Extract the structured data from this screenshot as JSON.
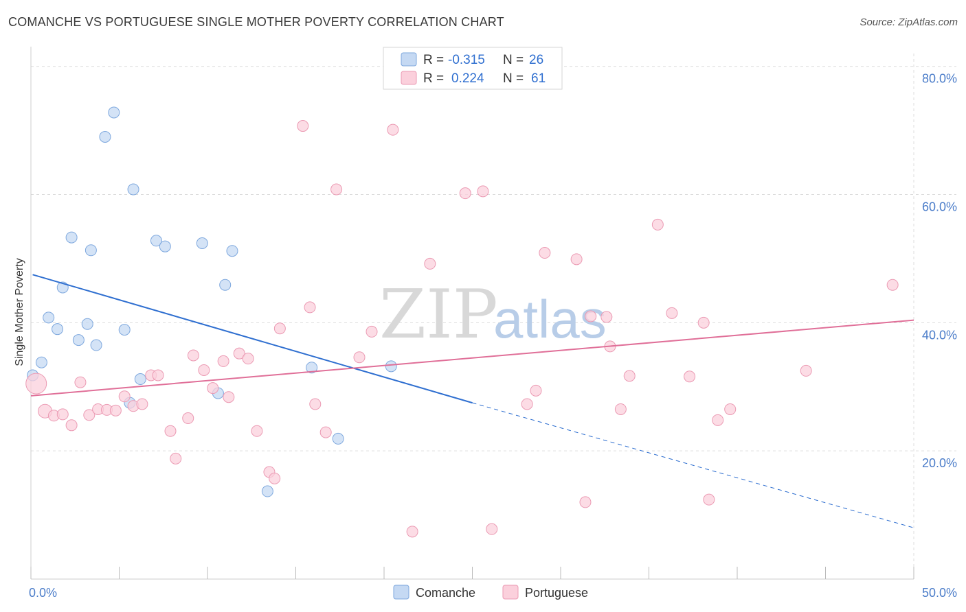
{
  "header": {
    "title": "COMANCHE VS PORTUGUESE SINGLE MOTHER POVERTY CORRELATION CHART",
    "source": "Source: ZipAtlas.com"
  },
  "watermark": {
    "zip": "ZIP",
    "atlas": "atlas"
  },
  "legend_top": {
    "rows": [
      {
        "r_label": "R = ",
        "r_value": "-0.315",
        "n_label": "N = ",
        "n_value": "26"
      },
      {
        "r_label": "R = ",
        "r_value": "0.224",
        "n_label": "N = ",
        "n_value": "61"
      }
    ]
  },
  "legend_bottom": {
    "items": [
      "Comanche",
      "Portuguese"
    ]
  },
  "colors": {
    "comanche_fill": "#c5d9f3",
    "comanche_stroke": "#7ea8de",
    "comanche_line": "#2f6fd0",
    "portuguese_fill": "#fbd0dc",
    "portuguese_stroke": "#eb9ab3",
    "portuguese_line": "#e06f98",
    "grid": "#dcdcdc",
    "tick_label": "#4a7cc9"
  },
  "chart_data": {
    "type": "scatter",
    "title": "COMANCHE VS PORTUGUESE SINGLE MOTHER POVERTY CORRELATION CHART",
    "xlabel": "",
    "ylabel": "Single Mother Poverty",
    "xlim": [
      0,
      50
    ],
    "ylim": [
      0,
      82
    ],
    "x_tick_labels": [
      "0.0%",
      "50.0%"
    ],
    "y_ticks": [
      20,
      40,
      60,
      80
    ],
    "y_tick_labels": [
      "20.0%",
      "40.0%",
      "60.0%",
      "80.0%"
    ],
    "grid": true,
    "legend_position": "top-center",
    "series": [
      {
        "name": "Comanche",
        "r": -0.315,
        "n": 26,
        "points": [
          [
            0.1,
            31.8
          ],
          [
            0.6,
            33.8
          ],
          [
            1.0,
            40.8
          ],
          [
            1.5,
            39.0
          ],
          [
            1.8,
            45.5
          ],
          [
            2.3,
            53.3
          ],
          [
            2.7,
            37.3
          ],
          [
            3.2,
            39.8
          ],
          [
            3.4,
            51.3
          ],
          [
            3.7,
            36.5
          ],
          [
            4.2,
            69.0
          ],
          [
            4.7,
            72.8
          ],
          [
            5.3,
            38.9
          ],
          [
            5.6,
            27.5
          ],
          [
            5.8,
            60.8
          ],
          [
            6.2,
            31.2
          ],
          [
            7.1,
            52.8
          ],
          [
            7.6,
            51.9
          ],
          [
            9.7,
            52.4
          ],
          [
            10.6,
            29.0
          ],
          [
            11.0,
            45.9
          ],
          [
            11.4,
            51.2
          ],
          [
            13.4,
            13.7
          ],
          [
            15.9,
            33.0
          ],
          [
            17.4,
            21.9
          ],
          [
            20.4,
            33.2
          ]
        ],
        "trend": {
          "x_start": 0.1,
          "y_start": 47.5,
          "x_solid_end": 25.0,
          "y_solid_end": 27.5,
          "x_end": 50.0,
          "y_end": 8.0
        }
      },
      {
        "name": "Portuguese",
        "r": 0.224,
        "n": 61,
        "points": [
          [
            0.3,
            30.5
          ],
          [
            0.8,
            26.2
          ],
          [
            1.3,
            25.5
          ],
          [
            1.8,
            25.7
          ],
          [
            2.3,
            24.0
          ],
          [
            2.8,
            30.7
          ],
          [
            3.3,
            25.6
          ],
          [
            3.8,
            26.5
          ],
          [
            4.3,
            26.4
          ],
          [
            4.8,
            26.3
          ],
          [
            5.3,
            28.5
          ],
          [
            5.8,
            27.0
          ],
          [
            6.3,
            27.3
          ],
          [
            6.8,
            31.8
          ],
          [
            7.2,
            31.8
          ],
          [
            7.9,
            23.1
          ],
          [
            8.2,
            18.8
          ],
          [
            8.9,
            25.1
          ],
          [
            9.2,
            34.9
          ],
          [
            9.8,
            32.6
          ],
          [
            10.3,
            29.8
          ],
          [
            10.9,
            34.0
          ],
          [
            11.2,
            28.4
          ],
          [
            11.8,
            35.2
          ],
          [
            12.3,
            34.4
          ],
          [
            12.8,
            23.1
          ],
          [
            13.5,
            16.7
          ],
          [
            13.8,
            15.7
          ],
          [
            14.1,
            39.1
          ],
          [
            15.8,
            42.4
          ],
          [
            16.1,
            27.3
          ],
          [
            16.7,
            22.9
          ],
          [
            17.3,
            60.8
          ],
          [
            18.6,
            34.6
          ],
          [
            19.3,
            38.6
          ],
          [
            15.4,
            70.7
          ],
          [
            20.5,
            70.1
          ],
          [
            21.6,
            7.4
          ],
          [
            22.6,
            49.2
          ],
          [
            24.6,
            60.2
          ],
          [
            25.6,
            60.5
          ],
          [
            26.1,
            7.8
          ],
          [
            28.1,
            27.3
          ],
          [
            28.6,
            29.4
          ],
          [
            29.1,
            50.9
          ],
          [
            30.9,
            49.9
          ],
          [
            31.4,
            12.0
          ],
          [
            31.7,
            41.0
          ],
          [
            32.6,
            40.9
          ],
          [
            32.8,
            36.3
          ],
          [
            33.4,
            26.5
          ],
          [
            33.9,
            31.7
          ],
          [
            35.5,
            55.3
          ],
          [
            36.3,
            41.5
          ],
          [
            37.3,
            31.6
          ],
          [
            38.1,
            40.0
          ],
          [
            38.4,
            12.4
          ],
          [
            38.9,
            24.8
          ],
          [
            39.6,
            26.5
          ],
          [
            43.9,
            32.5
          ],
          [
            48.8,
            45.9
          ]
        ],
        "trend": {
          "x_start": 0.0,
          "y_start": 28.6,
          "x_end": 50.0,
          "y_end": 40.4
        }
      }
    ]
  }
}
